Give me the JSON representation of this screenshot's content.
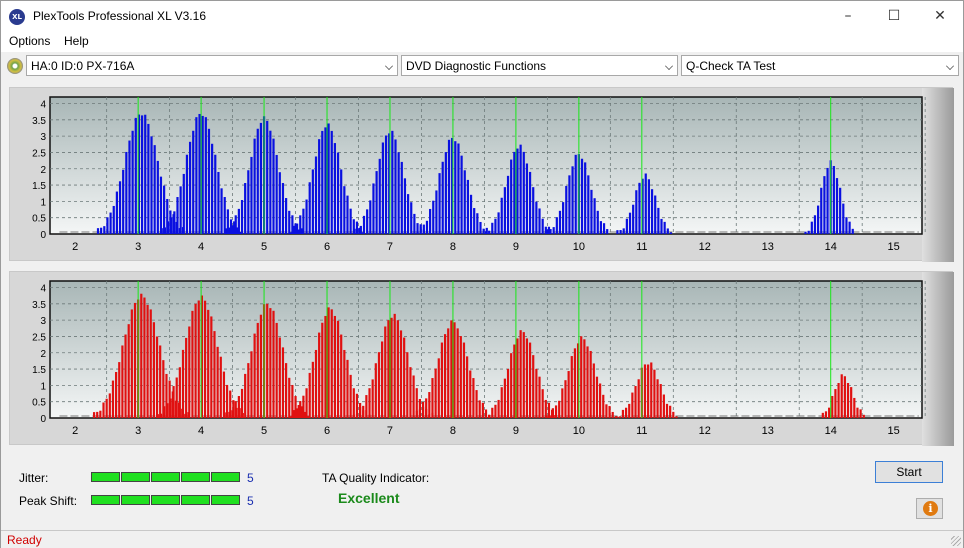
{
  "window": {
    "title": "PlexTools Professional XL V3.16",
    "app_icon_text": "XL"
  },
  "menu": {
    "items": [
      "Options",
      "Help"
    ]
  },
  "toolbar": {
    "drive": "HA:0 ID:0  PX-716A",
    "function": "DVD Diagnostic Functions",
    "test": "Q-Check TA Test"
  },
  "chart_data": [
    {
      "type": "bar",
      "name": "top-panel",
      "color": "#0a10e0",
      "x_ticks": [
        2,
        3,
        4,
        5,
        6,
        7,
        8,
        9,
        10,
        11,
        12,
        13,
        14,
        15
      ],
      "y_ticks": [
        0,
        0.5,
        1,
        1.5,
        2,
        2.5,
        3,
        3.5,
        4
      ],
      "ylim": [
        0,
        4.2
      ],
      "xlim": [
        1.6,
        15.45
      ],
      "marker_lines": [
        3,
        4,
        5,
        6,
        7,
        8,
        9,
        10,
        11,
        14
      ],
      "peaks": [
        {
          "center": 3.05,
          "height": 3.7,
          "width": 0.55
        },
        {
          "center": 4.0,
          "height": 3.7,
          "width": 0.5
        },
        {
          "center": 5.0,
          "height": 3.55,
          "width": 0.48
        },
        {
          "center": 6.0,
          "height": 3.35,
          "width": 0.46
        },
        {
          "center": 7.0,
          "height": 3.15,
          "width": 0.45
        },
        {
          "center": 8.0,
          "height": 2.95,
          "width": 0.45
        },
        {
          "center": 9.05,
          "height": 2.7,
          "width": 0.42
        },
        {
          "center": 10.0,
          "height": 2.45,
          "width": 0.4
        },
        {
          "center": 11.05,
          "height": 1.8,
          "width": 0.35
        },
        {
          "center": 14.0,
          "height": 2.2,
          "width": 0.32
        }
      ]
    },
    {
      "type": "bar",
      "name": "bottom-panel",
      "color": "#e01010",
      "x_ticks": [
        2,
        3,
        4,
        5,
        6,
        7,
        8,
        9,
        10,
        11,
        12,
        13,
        14,
        15
      ],
      "y_ticks": [
        0,
        0.5,
        1,
        1.5,
        2,
        2.5,
        3,
        3.5,
        4
      ],
      "ylim": [
        0,
        4.2
      ],
      "xlim": [
        1.6,
        15.45
      ],
      "marker_lines": [
        3,
        4,
        5,
        6,
        7,
        8,
        9,
        10,
        11,
        14
      ],
      "peaks": [
        {
          "center": 3.05,
          "height": 3.75,
          "width": 0.6
        },
        {
          "center": 4.0,
          "height": 3.7,
          "width": 0.55
        },
        {
          "center": 5.05,
          "height": 3.5,
          "width": 0.52
        },
        {
          "center": 6.05,
          "height": 3.35,
          "width": 0.5
        },
        {
          "center": 7.05,
          "height": 3.15,
          "width": 0.5
        },
        {
          "center": 8.0,
          "height": 2.95,
          "width": 0.5
        },
        {
          "center": 9.1,
          "height": 2.65,
          "width": 0.46
        },
        {
          "center": 10.05,
          "height": 2.45,
          "width": 0.45
        },
        {
          "center": 11.1,
          "height": 1.7,
          "width": 0.4
        },
        {
          "center": 14.2,
          "height": 1.3,
          "width": 0.3
        }
      ]
    }
  ],
  "results": {
    "jitter_label": "Jitter:",
    "jitter_value": "5",
    "jitter_segments": 5,
    "peak_shift_label": "Peak Shift:",
    "peak_shift_value": "5",
    "peak_shift_segments": 5,
    "ta_label": "TA Quality Indicator:",
    "ta_value": "Excellent"
  },
  "buttons": {
    "start": "Start",
    "info": "i"
  },
  "status": {
    "text": "Ready"
  }
}
